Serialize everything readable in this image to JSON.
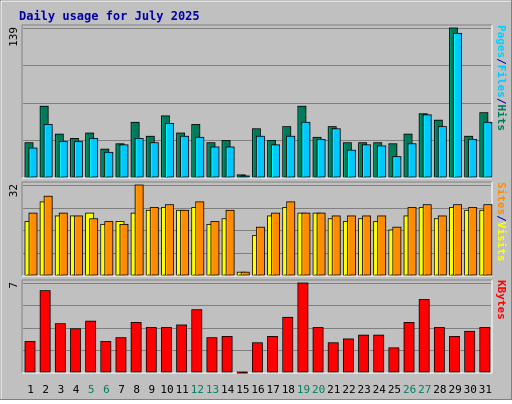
{
  "title": "Daily usage for July 2025",
  "colors": {
    "background": "#c0c0c0",
    "plot_bg": "#c0c0c0",
    "title": "#0000aa",
    "hits": "#007a5a",
    "files": "#00c8ff",
    "pages": "#00d0ff",
    "visits": "#ffff00",
    "sites": "#ff8c00",
    "kbytes": "#ff0000",
    "weekend_label": "#008060"
  },
  "chart_data": [
    {
      "type": "bar",
      "name": "hits-files",
      "ymax_label": "139",
      "ylim": [
        0,
        139
      ],
      "right_labels": [
        "Pages",
        "/",
        "Files",
        "/",
        "Hits"
      ],
      "categories": [
        "1",
        "2",
        "3",
        "4",
        "5",
        "6",
        "7",
        "8",
        "9",
        "10",
        "11",
        "12",
        "13",
        "14",
        "15",
        "16",
        "17",
        "18",
        "19",
        "20",
        "21",
        "22",
        "23",
        "24",
        "25",
        "26",
        "27",
        "28",
        "29",
        "30",
        "31"
      ],
      "series": [
        {
          "name": "Hits",
          "values": [
            32,
            66,
            40,
            36,
            41,
            26,
            31,
            51,
            38,
            57,
            41,
            49,
            32,
            34,
            2,
            45,
            34,
            47,
            66,
            37,
            47,
            32,
            32,
            32,
            31,
            40,
            59,
            53,
            139,
            38,
            60
          ]
        },
        {
          "name": "Files",
          "values": [
            27,
            49,
            33,
            33,
            36,
            23,
            30,
            36,
            32,
            50,
            38,
            37,
            28,
            28,
            1,
            38,
            30,
            38,
            51,
            35,
            45,
            25,
            30,
            29,
            19,
            31,
            58,
            47,
            134,
            35,
            51
          ]
        }
      ]
    },
    {
      "type": "bar",
      "name": "visits-sites",
      "ymax_label": "32",
      "ylim": [
        0,
        32
      ],
      "right_labels": [
        "Sites",
        "/",
        "Visits"
      ],
      "categories": [
        "1",
        "2",
        "3",
        "4",
        "5",
        "6",
        "7",
        "8",
        "9",
        "10",
        "11",
        "12",
        "13",
        "14",
        "15",
        "16",
        "17",
        "18",
        "19",
        "20",
        "21",
        "22",
        "23",
        "24",
        "25",
        "26",
        "27",
        "28",
        "29",
        "30",
        "31"
      ],
      "series": [
        {
          "name": "Visits",
          "values": [
            19,
            26,
            21,
            21,
            22,
            18,
            19,
            22,
            23,
            24,
            23,
            24,
            18,
            20,
            1,
            14,
            21,
            24,
            22,
            22,
            20,
            19,
            20,
            19,
            16,
            21,
            24,
            20,
            24,
            23,
            23
          ]
        },
        {
          "name": "Sites",
          "values": [
            22,
            28,
            22,
            21,
            20,
            19,
            18,
            32,
            24,
            25,
            23,
            26,
            19,
            23,
            1,
            17,
            22,
            26,
            22,
            22,
            21,
            21,
            21,
            21,
            17,
            24,
            25,
            21,
            25,
            24,
            25
          ]
        }
      ]
    },
    {
      "type": "bar",
      "name": "kbytes",
      "ymax_label": "7",
      "ylim": [
        0,
        7
      ],
      "right_labels": [
        "KBytes"
      ],
      "categories": [
        "1",
        "2",
        "3",
        "4",
        "5",
        "6",
        "7",
        "8",
        "9",
        "10",
        "11",
        "12",
        "13",
        "14",
        "15",
        "16",
        "17",
        "18",
        "19",
        "20",
        "21",
        "22",
        "23",
        "24",
        "25",
        "26",
        "27",
        "28",
        "29",
        "30",
        "31"
      ],
      "weekend_days": [
        "5",
        "6",
        "12",
        "13",
        "19",
        "20",
        "26",
        "27"
      ],
      "series": [
        {
          "name": "KBytes",
          "values": [
            2.4,
            6.4,
            3.8,
            3.4,
            4.0,
            2.4,
            2.7,
            3.9,
            3.5,
            3.5,
            3.7,
            4.9,
            2.7,
            2.8,
            0,
            2.3,
            2.8,
            4.3,
            7.0,
            3.5,
            2.3,
            2.6,
            2.9,
            2.9,
            1.9,
            3.9,
            5.7,
            3.5,
            2.8,
            3.2,
            3.5
          ]
        }
      ]
    }
  ]
}
